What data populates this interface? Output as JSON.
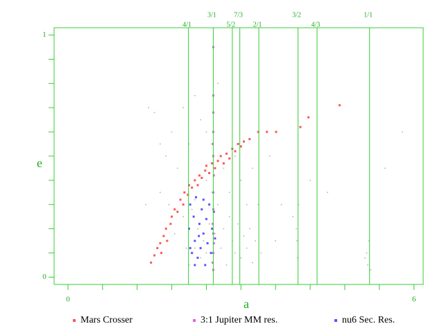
{
  "chart_data": {
    "type": "scatter",
    "x_label": "a",
    "y_label": "e",
    "xlim": [
      -0.24,
      6.16
    ],
    "ylim": [
      -0.03,
      1.03
    ],
    "xticks": [
      0,
      6
    ],
    "yticks": [
      0,
      1
    ],
    "x_minor_ticks": [
      0.6,
      1.2,
      1.8,
      2.4,
      3.0,
      3.6,
      4.2,
      4.8,
      5.4
    ],
    "y_minor_ticks": [
      0.1,
      0.2,
      0.3,
      0.4,
      0.5,
      0.6,
      0.7,
      0.8,
      0.9
    ],
    "axis_color": "#33cc33",
    "resonances": [
      {
        "label": "4/1",
        "a": 2.09
      },
      {
        "label": "3/1",
        "a": 2.52
      },
      {
        "label": "5/2",
        "a": 2.85
      },
      {
        "label": "7/3",
        "a": 2.98
      },
      {
        "label": "2/1",
        "a": 3.31
      },
      {
        "label": "3/2",
        "a": 3.99
      },
      {
        "label": "4/3",
        "a": 4.32
      },
      {
        "label": "1/1",
        "a": 5.23
      }
    ],
    "series": [
      {
        "color": "#aaaaaa",
        "x": [
          1.6,
          1.7,
          1.8,
          1.9,
          2.0,
          1.5,
          2.2,
          2.4,
          2.6,
          1.75,
          1.85,
          2.0,
          2.1,
          2.2,
          2.25,
          2.3,
          2.35,
          2.4,
          2.45,
          2.55,
          2.6,
          2.65,
          2.7,
          2.75,
          2.8,
          2.85,
          2.9,
          2.95,
          3.0,
          3.05,
          3.1,
          3.15,
          3.2,
          3.25,
          3.3,
          3.0,
          3.2,
          3.5,
          3.7,
          3.6,
          3.9,
          3.97,
          3.98,
          4.0,
          3.96,
          4.2,
          4.5,
          5.2,
          5.18,
          5.22,
          5.25,
          5.15,
          5.8,
          5.5,
          2.1,
          2.3,
          1.6,
          2.7,
          2.9,
          1.35,
          1.4,
          2.4,
          2.2,
          2.5,
          2.8,
          3.1,
          2.05,
          2.15,
          3.35
        ],
        "values": [
          0.35,
          0.5,
          0.6,
          0.45,
          0.7,
          0.68,
          0.75,
          0.6,
          0.8,
          0.3,
          0.18,
          0.25,
          0.05,
          0.12,
          0.2,
          0.08,
          0.15,
          0.1,
          0.22,
          0.18,
          0.3,
          0.12,
          0.2,
          0.05,
          0.25,
          0.15,
          0.1,
          0.22,
          0.08,
          0.17,
          0.12,
          0.2,
          0.06,
          0.15,
          0.3,
          0.4,
          0.45,
          0.5,
          0.3,
          0.15,
          0.25,
          0.15,
          0.08,
          0.3,
          0.2,
          0.4,
          0.35,
          0.05,
          0.1,
          0.15,
          0.03,
          0.08,
          0.6,
          0.45,
          0.55,
          0.65,
          0.55,
          0.45,
          0.5,
          0.3,
          0.7,
          0.4,
          0.32,
          0.35,
          0.35,
          0.3,
          0.12,
          0.28,
          0.1
        ]
      },
      {
        "name": "Mars Crosser",
        "color": "#ff5555",
        "x": [
          1.44,
          1.5,
          1.55,
          1.6,
          1.62,
          1.66,
          1.7,
          1.72,
          1.78,
          1.8,
          1.85,
          1.9,
          1.95,
          2.0,
          2.02,
          2.08,
          2.1,
          2.15,
          2.2,
          2.25,
          2.28,
          2.32,
          2.38,
          2.4,
          2.45,
          2.5,
          2.55,
          2.6,
          2.65,
          2.7,
          2.75,
          2.8,
          2.85,
          2.9,
          2.95,
          3.0,
          3.05,
          3.15,
          3.3,
          3.45,
          3.61,
          4.03,
          4.17,
          4.71
        ],
        "values": [
          0.06,
          0.09,
          0.12,
          0.14,
          0.1,
          0.17,
          0.2,
          0.15,
          0.22,
          0.25,
          0.28,
          0.27,
          0.32,
          0.3,
          0.35,
          0.34,
          0.38,
          0.37,
          0.4,
          0.38,
          0.42,
          0.41,
          0.44,
          0.46,
          0.43,
          0.47,
          0.45,
          0.48,
          0.5,
          0.47,
          0.51,
          0.49,
          0.53,
          0.52,
          0.55,
          0.54,
          0.56,
          0.57,
          0.6,
          0.6,
          0.6,
          0.62,
          0.66,
          0.71
        ]
      },
      {
        "name": "3:1 Jupiter MM res.",
        "color": "#dd66dd",
        "x": [
          2.52,
          2.51,
          2.52,
          2.53,
          2.52,
          2.51,
          2.52,
          2.52,
          2.53,
          2.52,
          2.51,
          2.52,
          2.52,
          2.52,
          2.52
        ],
        "values": [
          0.03,
          0.06,
          0.1,
          0.14,
          0.18,
          0.22,
          0.28,
          0.35,
          0.42,
          0.5,
          0.55,
          0.6,
          0.68,
          0.75,
          0.95
        ]
      },
      {
        "name": "nu6 Sec. Res.",
        "color": "#5555ff",
        "x": [
          2.1,
          2.12,
          2.15,
          2.18,
          2.2,
          2.22,
          2.25,
          2.28,
          2.3,
          2.32,
          2.35,
          2.38,
          2.4,
          2.42,
          2.45,
          2.48,
          2.5,
          2.53,
          2.55,
          2.12,
          2.2,
          2.35,
          2.27
        ],
        "values": [
          0.2,
          0.3,
          0.1,
          0.25,
          0.15,
          0.33,
          0.08,
          0.22,
          0.12,
          0.28,
          0.18,
          0.05,
          0.24,
          0.14,
          0.3,
          0.1,
          0.2,
          0.27,
          0.16,
          0.12,
          0.05,
          0.32,
          0.17
        ]
      }
    ]
  }
}
